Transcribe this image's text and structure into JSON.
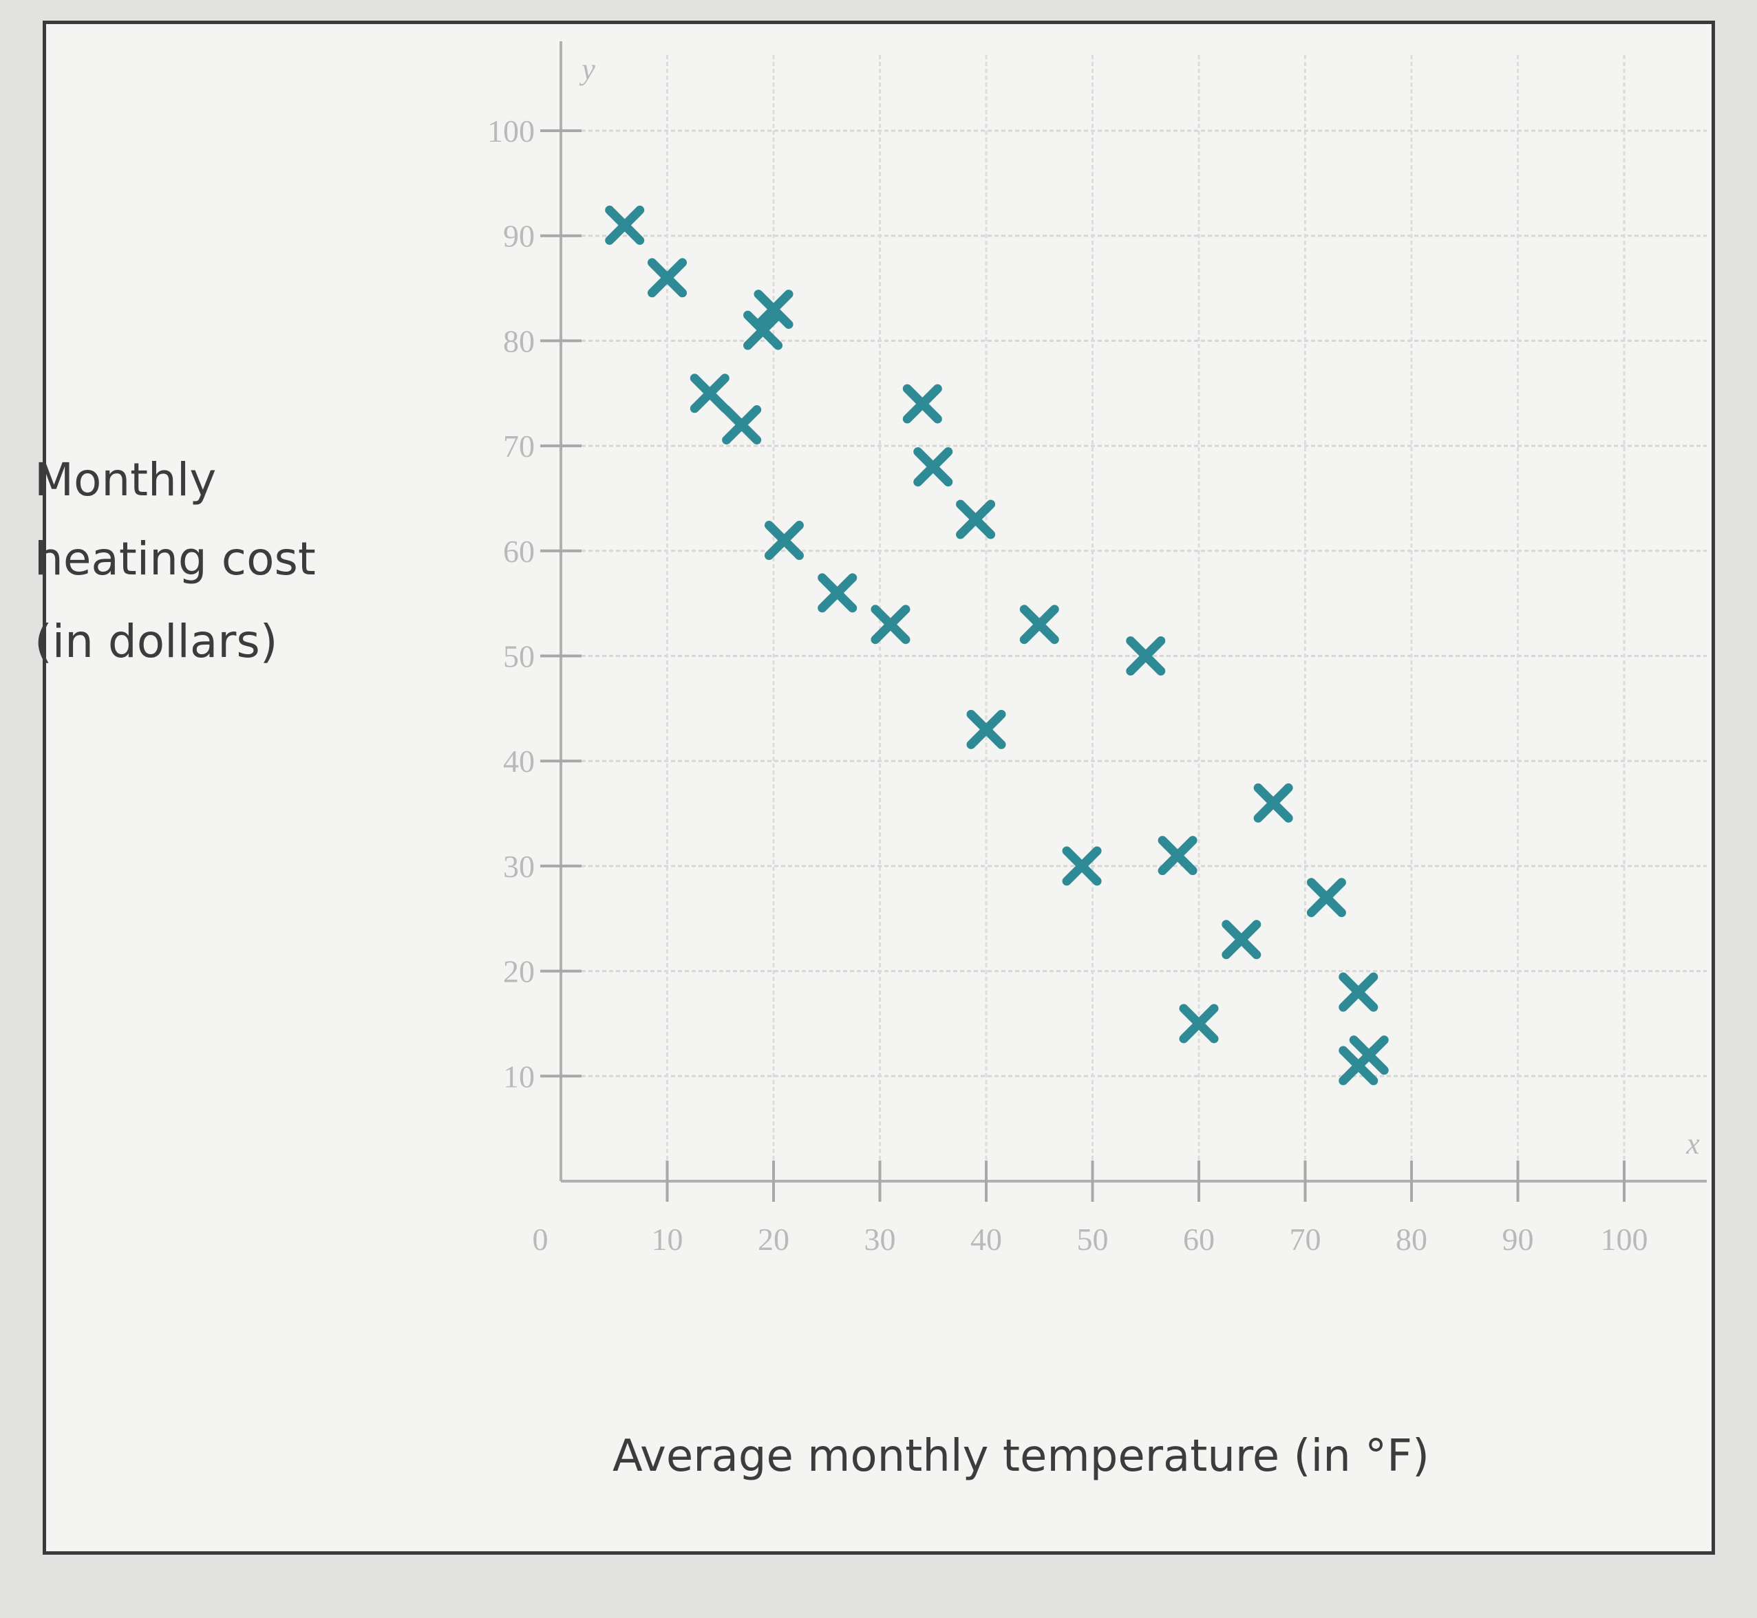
{
  "chart_data": {
    "type": "scatter",
    "title": "",
    "xlabel": "Average monthly temperature (in °F)",
    "ylabel_lines": [
      "Monthly",
      "heating cost",
      "(in dollars)"
    ],
    "x_axis_letter": "x",
    "y_axis_letter": "y",
    "origin_label": "0",
    "xlim": [
      0,
      100
    ],
    "ylim": [
      0,
      100
    ],
    "x_ticks": [
      10,
      20,
      30,
      40,
      50,
      60,
      70,
      80,
      90,
      100
    ],
    "y_ticks": [
      10,
      20,
      30,
      40,
      50,
      60,
      70,
      80,
      90,
      100
    ],
    "grid": true,
    "marker": "x",
    "color": "#2e8a94",
    "points": [
      {
        "x": 6,
        "y": 91
      },
      {
        "x": 10,
        "y": 86
      },
      {
        "x": 14,
        "y": 75
      },
      {
        "x": 17,
        "y": 72
      },
      {
        "x": 19,
        "y": 81
      },
      {
        "x": 20,
        "y": 83
      },
      {
        "x": 21,
        "y": 61
      },
      {
        "x": 26,
        "y": 56
      },
      {
        "x": 31,
        "y": 53
      },
      {
        "x": 34,
        "y": 74
      },
      {
        "x": 35,
        "y": 68
      },
      {
        "x": 39,
        "y": 63
      },
      {
        "x": 40,
        "y": 43
      },
      {
        "x": 45,
        "y": 53
      },
      {
        "x": 49,
        "y": 30
      },
      {
        "x": 55,
        "y": 50
      },
      {
        "x": 58,
        "y": 31
      },
      {
        "x": 60,
        "y": 15
      },
      {
        "x": 64,
        "y": 23
      },
      {
        "x": 67,
        "y": 36
      },
      {
        "x": 72,
        "y": 27
      },
      {
        "x": 75,
        "y": 18
      },
      {
        "x": 75,
        "y": 11
      },
      {
        "x": 76,
        "y": 12
      }
    ]
  }
}
